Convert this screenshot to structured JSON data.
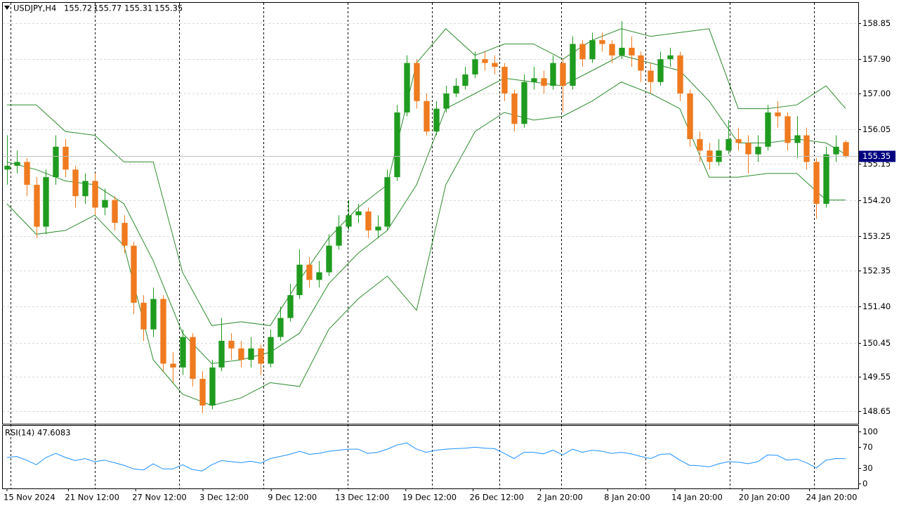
{
  "chart_data": {
    "type": "candlestick",
    "symbol": "USDJPY,H4",
    "open": [
      155.0,
      155.1,
      155.2,
      154.6,
      153.5,
      154.8,
      155.6,
      155.0,
      154.3,
      154.7,
      154.0,
      154.2,
      153.6,
      153.0,
      151.5,
      150.8,
      151.6,
      149.9,
      149.8,
      150.6,
      149.5,
      148.8,
      149.8,
      150.5,
      150.3,
      150.0,
      150.3,
      149.9,
      150.6,
      151.1,
      151.7,
      152.5,
      152.1,
      152.3,
      153.0,
      153.5,
      153.8,
      153.9,
      153.4,
      153.5,
      154.8,
      156.5,
      157.8,
      156.8,
      156.0,
      156.6,
      157.0,
      157.2,
      157.5,
      157.9,
      157.8,
      157.7,
      157.0,
      156.2,
      157.3,
      157.4,
      157.2,
      157.8,
      157.2,
      158.3,
      157.9,
      158.4,
      158.3,
      158.0,
      158.2,
      158.0,
      157.6,
      157.3,
      157.9,
      158.0,
      157.0,
      155.8,
      155.5,
      155.2,
      155.5,
      155.8,
      155.7,
      155.4,
      155.6,
      156.5,
      156.4,
      155.7,
      155.9,
      155.2,
      154.1,
      155.4,
      155.72
    ],
    "high": [
      155.9,
      155.5,
      155.3,
      154.8,
      155.0,
      155.9,
      155.8,
      155.1,
      154.9,
      154.9,
      154.5,
      154.3,
      153.8,
      153.1,
      151.7,
      151.9,
      151.7,
      150.2,
      150.8,
      150.7,
      149.7,
      150.0,
      151.1,
      150.7,
      150.5,
      150.6,
      150.4,
      150.8,
      151.4,
      152.0,
      152.9,
      152.7,
      152.6,
      153.3,
      153.8,
      154.2,
      154.1,
      154.0,
      153.8,
      155.0,
      156.7,
      158.0,
      157.9,
      157.0,
      156.8,
      157.2,
      157.4,
      157.7,
      158.1,
      158.1,
      158.0,
      157.8,
      157.1,
      157.5,
      157.7,
      157.6,
      158.0,
      157.9,
      158.5,
      158.4,
      158.6,
      158.6,
      158.4,
      158.9,
      158.5,
      158.1,
      157.8,
      158.1,
      158.2,
      158.1,
      157.1,
      156.0,
      155.7,
      155.8,
      156.3,
      156.1,
      155.9,
      155.9,
      156.7,
      156.8,
      156.5,
      156.4,
      156.1,
      155.3,
      155.6,
      155.9,
      155.77
    ],
    "low": [
      154.6,
      154.9,
      154.3,
      153.2,
      153.3,
      154.6,
      154.8,
      154.0,
      154.1,
      153.8,
      153.8,
      153.4,
      152.8,
      151.2,
      150.5,
      150.6,
      149.7,
      149.4,
      149.6,
      149.3,
      148.6,
      148.7,
      149.7,
      150.0,
      149.8,
      149.8,
      149.6,
      149.8,
      150.5,
      151.0,
      151.6,
      151.9,
      151.9,
      152.2,
      152.9,
      153.4,
      153.6,
      153.2,
      153.2,
      153.4,
      154.7,
      156.4,
      156.6,
      155.9,
      155.9,
      156.5,
      156.9,
      157.1,
      157.4,
      157.6,
      157.5,
      156.8,
      156.0,
      156.1,
      157.1,
      157.0,
      157.1,
      156.5,
      157.1,
      157.7,
      157.8,
      158.1,
      157.8,
      157.9,
      157.7,
      157.3,
      157.0,
      157.2,
      157.7,
      156.8,
      155.6,
      155.2,
      155.0,
      155.1,
      155.4,
      155.5,
      154.9,
      155.2,
      155.5,
      156.1,
      155.5,
      155.3,
      155.0,
      153.7,
      154.0,
      155.2,
      155.31
    ],
    "close": [
      155.1,
      155.2,
      154.6,
      153.5,
      154.8,
      155.6,
      155.0,
      154.3,
      154.7,
      154.0,
      154.2,
      153.6,
      153.0,
      151.5,
      150.8,
      151.6,
      149.9,
      149.8,
      150.6,
      149.5,
      148.8,
      149.8,
      150.5,
      150.3,
      150.0,
      150.3,
      149.9,
      150.6,
      151.1,
      151.7,
      152.5,
      152.1,
      152.3,
      153.0,
      153.5,
      153.8,
      153.9,
      153.4,
      153.5,
      154.8,
      156.5,
      157.8,
      156.8,
      156.0,
      156.6,
      157.0,
      157.2,
      157.5,
      157.9,
      157.8,
      157.7,
      157.0,
      156.2,
      157.3,
      157.4,
      157.2,
      157.8,
      157.2,
      158.3,
      157.9,
      158.4,
      158.3,
      158.0,
      158.2,
      158.0,
      157.6,
      157.3,
      157.9,
      158.0,
      157.0,
      155.8,
      155.5,
      155.2,
      155.5,
      155.8,
      155.7,
      155.4,
      155.6,
      156.5,
      156.4,
      155.7,
      155.9,
      155.2,
      154.1,
      155.4,
      155.6,
      155.35
    ],
    "up_color": "#1f9b1f",
    "down_color": "#ef7a1f",
    "xlim": [
      -0.5,
      87.3
    ],
    "xticks": [
      {
        "value": 0,
        "label": "15 Nov 2024"
      },
      {
        "value": 6.3,
        "label": "21 Nov 12:00"
      },
      {
        "value": 13.2,
        "label": "27 Nov 12:00"
      },
      {
        "value": 20.1,
        "label": "3 Dec 12:00"
      },
      {
        "value": 27.1,
        "label": "9 Dec 12:00"
      },
      {
        "value": 34,
        "label": "13 Dec 12:00"
      },
      {
        "value": 40.9,
        "label": "19 Dec 12:00"
      },
      {
        "value": 47.8,
        "label": "26 Dec 12:00"
      },
      {
        "value": 54.7,
        "label": "2 Jan 20:00"
      },
      {
        "value": 61.6,
        "label": "8 Jan 20:00"
      },
      {
        "value": 68.5,
        "label": "14 Jan 20:00"
      },
      {
        "value": 75.4,
        "label": "20 Jan 20:00"
      },
      {
        "value": 82.3,
        "label": "24 Jan 20:00"
      }
    ],
    "ylim": [
      148.32,
      159.4
    ],
    "yticks": [
      158.85,
      {
        "value": 157.9,
        "label": "157.90"
      },
      {
        "value": 157,
        "label": "157.00"
      },
      156.05,
      155.15,
      {
        "value": 154.2,
        "label": "154.20"
      },
      153.25,
      152.35,
      {
        "value": 151.4,
        "label": "151.40"
      },
      150.45,
      149.55,
      148.65
    ],
    "grid": true,
    "bands": {
      "color": "#2e8b2e",
      "x": [
        0,
        3,
        6,
        9,
        12,
        15,
        18,
        21,
        24,
        27,
        30,
        33,
        36,
        39,
        42,
        45,
        48,
        51,
        54,
        57,
        60,
        63,
        66,
        69,
        72,
        75,
        78,
        81,
        84,
        86
      ],
      "upper": [
        156.7,
        156.7,
        156.0,
        155.9,
        155.2,
        155.2,
        152.3,
        150.9,
        151.0,
        150.9,
        152.1,
        153.2,
        154.0,
        154.6,
        157.8,
        158.7,
        158.0,
        158.3,
        158.3,
        157.9,
        158.4,
        158.7,
        158.5,
        158.6,
        158.7,
        156.6,
        156.6,
        156.7,
        157.2,
        156.6
      ],
      "middle": [
        155.2,
        155.0,
        154.7,
        154.6,
        154.1,
        152.6,
        150.7,
        149.9,
        150.0,
        150.2,
        150.7,
        152.0,
        152.8,
        153.4,
        154.6,
        156.6,
        157.0,
        157.4,
        157.3,
        157.2,
        157.6,
        158.0,
        157.8,
        157.6,
        156.8,
        155.7,
        155.7,
        155.8,
        155.7,
        155.4
      ],
      "lower": [
        154.1,
        153.3,
        153.4,
        153.8,
        153.0,
        150.0,
        149.1,
        148.8,
        149.0,
        149.4,
        149.3,
        150.8,
        151.6,
        152.2,
        151.3,
        154.6,
        156.0,
        156.5,
        156.3,
        156.4,
        156.8,
        157.3,
        157.0,
        156.6,
        154.8,
        154.8,
        154.9,
        154.9,
        154.2,
        154.2
      ]
    },
    "indicator": {
      "type": "line",
      "title": "RSI(14)",
      "color": "#1e90ff",
      "values": [
        50,
        52,
        45,
        36,
        50,
        58,
        50,
        44,
        48,
        42,
        45,
        40,
        35,
        28,
        26,
        38,
        28,
        28,
        36,
        27,
        24,
        36,
        44,
        42,
        40,
        43,
        39,
        48,
        52,
        56,
        62,
        56,
        58,
        62,
        64,
        66,
        66,
        58,
        60,
        66,
        74,
        78,
        66,
        60,
        64,
        66,
        67,
        68,
        70,
        68,
        67,
        58,
        48,
        60,
        60,
        57,
        64,
        55,
        66,
        60,
        64,
        62,
        58,
        60,
        57,
        52,
        48,
        56,
        57,
        45,
        35,
        34,
        32,
        38,
        42,
        41,
        38,
        42,
        55,
        54,
        45,
        47,
        40,
        30,
        45,
        48,
        47.6083
      ],
      "ylim": [
        -9.5,
        110.8
      ],
      "yticks": [
        100,
        70,
        30,
        0
      ]
    }
  }
}
